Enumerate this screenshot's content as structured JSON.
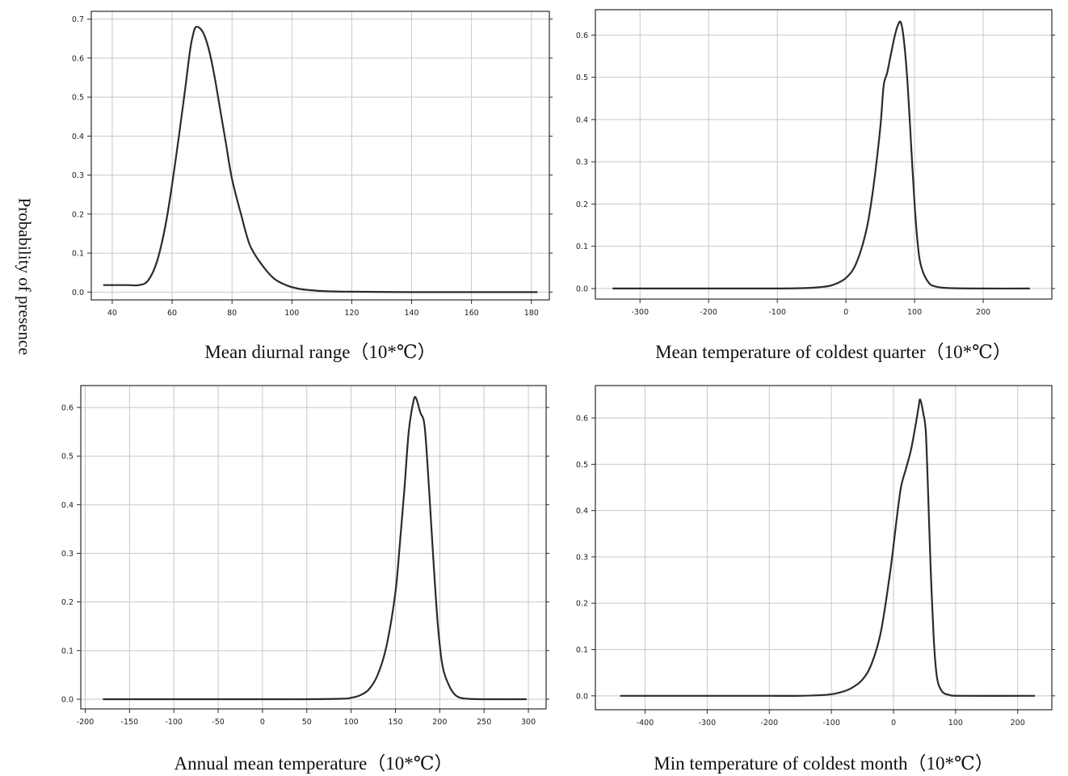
{
  "ylabel": "Probability of presence",
  "chart_data": [
    {
      "type": "line",
      "xlabel": "Mean diurnal range（10*℃）",
      "xlim": [
        33,
        186
      ],
      "ylim": [
        -0.02,
        0.72
      ],
      "xticks": [
        40,
        60,
        80,
        100,
        120,
        140,
        160,
        180
      ],
      "yticks": [
        0.0,
        0.1,
        0.2,
        0.3,
        0.4,
        0.5,
        0.6,
        0.7
      ],
      "tick_decimals": 1,
      "grid": true,
      "x": [
        37,
        45,
        49,
        52,
        55,
        58,
        61,
        64,
        66,
        67,
        68,
        70,
        72,
        74,
        76,
        78,
        80,
        83,
        86,
        90,
        94,
        98,
        102,
        106,
        112,
        120,
        140,
        160,
        182
      ],
      "y": [
        0.018,
        0.018,
        0.018,
        0.03,
        0.08,
        0.18,
        0.33,
        0.5,
        0.62,
        0.66,
        0.68,
        0.67,
        0.63,
        0.56,
        0.47,
        0.38,
        0.29,
        0.2,
        0.12,
        0.07,
        0.035,
        0.018,
        0.009,
        0.005,
        0.002,
        0.001,
        0.0,
        0.0,
        0.0
      ]
    },
    {
      "type": "line",
      "xlabel": "Mean temperature of coldest quarter（10*℃）",
      "xlim": [
        -365,
        300
      ],
      "ylim": [
        -0.025,
        0.66
      ],
      "xticks": [
        -300,
        -200,
        -100,
        0,
        100,
        200
      ],
      "yticks": [
        0.0,
        0.1,
        0.2,
        0.3,
        0.4,
        0.5,
        0.6
      ],
      "tick_decimals": 1,
      "grid": true,
      "x": [
        -340,
        -200,
        -100,
        -60,
        -40,
        -20,
        0,
        15,
        30,
        40,
        50,
        55,
        60,
        65,
        70,
        75,
        80,
        85,
        90,
        95,
        100,
        105,
        110,
        120,
        130,
        150,
        200,
        268
      ],
      "y": [
        0.0,
        0.0,
        0.0,
        0.001,
        0.003,
        0.008,
        0.025,
        0.06,
        0.14,
        0.24,
        0.38,
        0.48,
        0.51,
        0.55,
        0.59,
        0.62,
        0.63,
        0.58,
        0.48,
        0.34,
        0.2,
        0.1,
        0.05,
        0.015,
        0.005,
        0.001,
        0.0,
        0.0
      ]
    },
    {
      "type": "line",
      "xlabel": "Annual mean temperature（10*℃）",
      "xlim": [
        -205,
        320
      ],
      "ylim": [
        -0.02,
        0.645
      ],
      "xticks": [
        -200,
        -150,
        -100,
        -50,
        0,
        50,
        100,
        150,
        200,
        250,
        300
      ],
      "yticks": [
        0.0,
        0.1,
        0.2,
        0.3,
        0.4,
        0.5,
        0.6
      ],
      "tick_decimals": 1,
      "grid": true,
      "x": [
        -180,
        -100,
        0,
        50,
        90,
        100,
        110,
        120,
        130,
        140,
        150,
        155,
        160,
        165,
        170,
        173,
        178,
        183,
        188,
        193,
        198,
        203,
        210,
        218,
        230,
        260,
        298
      ],
      "y": [
        0.0,
        0.0,
        0.0,
        0.0,
        0.001,
        0.003,
        0.008,
        0.02,
        0.05,
        0.11,
        0.22,
        0.32,
        0.43,
        0.55,
        0.61,
        0.62,
        0.59,
        0.56,
        0.43,
        0.28,
        0.15,
        0.07,
        0.03,
        0.008,
        0.001,
        0.0,
        0.0
      ]
    },
    {
      "type": "line",
      "xlabel": "Min temperature of coldest month（10*℃）",
      "xlim": [
        -480,
        255
      ],
      "ylim": [
        -0.03,
        0.67
      ],
      "xticks": [
        -400,
        -300,
        -200,
        -100,
        0,
        100,
        200
      ],
      "yticks": [
        0.0,
        0.1,
        0.2,
        0.3,
        0.4,
        0.5,
        0.6
      ],
      "tick_decimals": 1,
      "grid": true,
      "x": [
        -440,
        -300,
        -200,
        -150,
        -110,
        -90,
        -70,
        -50,
        -35,
        -20,
        -5,
        5,
        12,
        20,
        28,
        35,
        40,
        43,
        48,
        52,
        56,
        60,
        65,
        70,
        78,
        90,
        110,
        228
      ],
      "y": [
        0.0,
        0.0,
        0.0,
        0.0,
        0.002,
        0.006,
        0.015,
        0.035,
        0.07,
        0.14,
        0.27,
        0.38,
        0.45,
        0.49,
        0.53,
        0.58,
        0.62,
        0.64,
        0.61,
        0.57,
        0.43,
        0.27,
        0.12,
        0.04,
        0.01,
        0.002,
        0.0,
        0.0
      ]
    }
  ]
}
